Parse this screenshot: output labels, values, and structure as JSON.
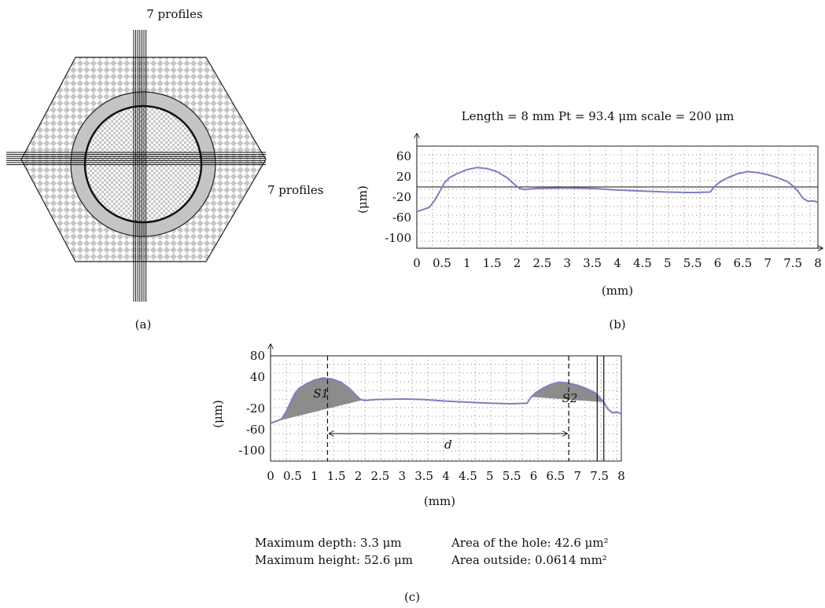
{
  "figure_a": {
    "label": "(a)",
    "profiles_top": "7 profiles",
    "profiles_right": "7 profiles"
  },
  "chart_data": [
    {
      "id": "b",
      "type": "line",
      "panel_label": "(b)",
      "title": "Length = 8 mm Pt = 93.4 μm scale = 200 μm",
      "xlabel": "(mm)",
      "ylabel": "(μm)",
      "xlim": [
        0,
        8
      ],
      "ylim": [
        -120,
        80
      ],
      "xticks": [
        "0",
        "0.5",
        "1",
        "1.5",
        "2",
        "2.5",
        "3",
        "3.5",
        "4",
        "4.5",
        "5",
        "5.5",
        "6",
        "6.5",
        "7",
        "7.5",
        "8"
      ],
      "yticks": [
        60,
        20,
        -20,
        -60,
        -100
      ],
      "grid": "dotted",
      "reference_line_y": 0,
      "line_color": "#7b7fc0",
      "series": [
        {
          "x": [
            0,
            0.1,
            0.25,
            0.35,
            0.45,
            0.55,
            0.65,
            0.8,
            1.0,
            1.2,
            1.4,
            1.6,
            1.8,
            1.95,
            2.05,
            2.15,
            2.4,
            3.0,
            3.5,
            4.0,
            4.5,
            5.0,
            5.5,
            5.85,
            5.95,
            6.05,
            6.2,
            6.4,
            6.6,
            6.8,
            7.0,
            7.2,
            7.4,
            7.5,
            7.6,
            7.7,
            7.8,
            7.9,
            8.0
          ],
          "y": [
            -48,
            -45,
            -40,
            -27,
            -10,
            8,
            18,
            26,
            34,
            38,
            36,
            30,
            18,
            5,
            -3,
            -5,
            -3,
            -2,
            -3,
            -6,
            -8,
            -10,
            -11,
            -10,
            2,
            10,
            18,
            26,
            30,
            28,
            24,
            18,
            10,
            2,
            -8,
            -22,
            -28,
            -27,
            -30
          ]
        }
      ]
    },
    {
      "id": "c",
      "type": "area",
      "panel_label": "(c)",
      "xlabel": "(mm)",
      "ylabel": "(μm)",
      "xlim": [
        0,
        8
      ],
      "ylim": [
        -120,
        80
      ],
      "xticks": [
        "0",
        "0.5",
        "1",
        "1.5",
        "2",
        "2.5",
        "3",
        "3.5",
        "4",
        "4.5",
        "5",
        "5.5",
        "6",
        "6.5",
        "7",
        "7.5",
        "8"
      ],
      "yticks": [
        80,
        40,
        -20,
        -60,
        -100
      ],
      "grid": "dotted",
      "line_color": "#7b7fc0",
      "fill_color": "#8c8c8c",
      "series": [
        {
          "x": [
            0,
            0.1,
            0.25,
            0.35,
            0.45,
            0.55,
            0.65,
            0.8,
            1.0,
            1.2,
            1.4,
            1.6,
            1.8,
            1.95,
            2.05,
            2.15,
            2.4,
            3.0,
            3.5,
            4.0,
            4.5,
            5.0,
            5.5,
            5.85,
            5.95,
            6.05,
            6.2,
            6.4,
            6.6,
            6.8,
            7.0,
            7.2,
            7.4,
            7.5,
            7.6,
            7.7,
            7.8,
            7.9,
            8.0
          ],
          "y": [
            -48,
            -45,
            -40,
            -27,
            -10,
            8,
            18,
            26,
            34,
            38,
            36,
            30,
            18,
            5,
            -3,
            -5,
            -3,
            -2,
            -3,
            -6,
            -8,
            -10,
            -11,
            -10,
            2,
            10,
            18,
            26,
            30,
            28,
            24,
            18,
            10,
            2,
            -8,
            -22,
            -28,
            -27,
            -30
          ]
        }
      ],
      "regions": [
        {
          "label": "S1",
          "x_start": 0.1,
          "x_end": 2.1
        },
        {
          "label": "S2",
          "x_start": 5.95,
          "x_end": 7.6
        }
      ],
      "markers_x": [
        1.3,
        6.8
      ],
      "right_lines_x": [
        7.45,
        7.6
      ],
      "distance_label": "d",
      "stats": {
        "max_depth": "Maximum depth: 3.3 μm",
        "max_height": "Maximum height: 52.6 μm",
        "hole_area": "Area of the hole: 42.6 μm²",
        "outside_area": "Area outside: 0.0614 mm²"
      }
    }
  ]
}
